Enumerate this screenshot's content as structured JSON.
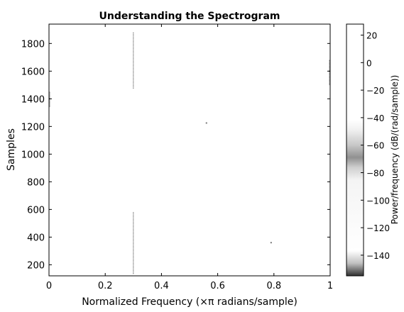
{
  "chart_data": {
    "type": "heatmap",
    "title": "Understanding the Spectrogram",
    "xlabel": "Normalized Frequency (×π radians/sample)",
    "ylabel": "Samples",
    "xlim": [
      0,
      1
    ],
    "ylim": [
      120,
      1940
    ],
    "xticks": [
      0,
      0.2,
      0.4,
      0.6,
      0.8,
      1
    ],
    "xtick_labels": [
      "0",
      "0.2",
      "0.4",
      "0.6",
      "0.8",
      "1"
    ],
    "yticks": [
      200,
      400,
      600,
      800,
      1000,
      1200,
      1400,
      1600,
      1800
    ],
    "ytick_labels": [
      "200",
      "400",
      "600",
      "800",
      "1000",
      "1200",
      "1400",
      "1600",
      "1800"
    ],
    "colorbar": {
      "label": "Power/frequency (dB/(rad/sample))",
      "range": [
        -155,
        28
      ],
      "ticks": [
        20,
        0,
        -20,
        -40,
        -60,
        -80,
        -100,
        -120,
        -140
      ],
      "tick_labels": [
        "20",
        "0",
        "−20",
        "−40",
        "−60",
        "−80",
        "−100",
        "−120",
        "−140"
      ]
    },
    "colormap": "gray-reversed",
    "features": [
      {
        "kind": "line",
        "x": 0.3,
        "y_from": 1470,
        "y_to": 1880
      },
      {
        "kind": "line",
        "x": 0.3,
        "y_from": 130,
        "y_to": 580
      },
      {
        "kind": "line",
        "x": 1.0,
        "y_from": 1500,
        "y_to": 1680
      },
      {
        "kind": "line",
        "x": 0.0,
        "y_from": 1340,
        "y_to": 1450
      },
      {
        "kind": "dot",
        "x": 0.56,
        "y": 1225
      },
      {
        "kind": "dot",
        "x": 0.79,
        "y": 360
      }
    ]
  }
}
